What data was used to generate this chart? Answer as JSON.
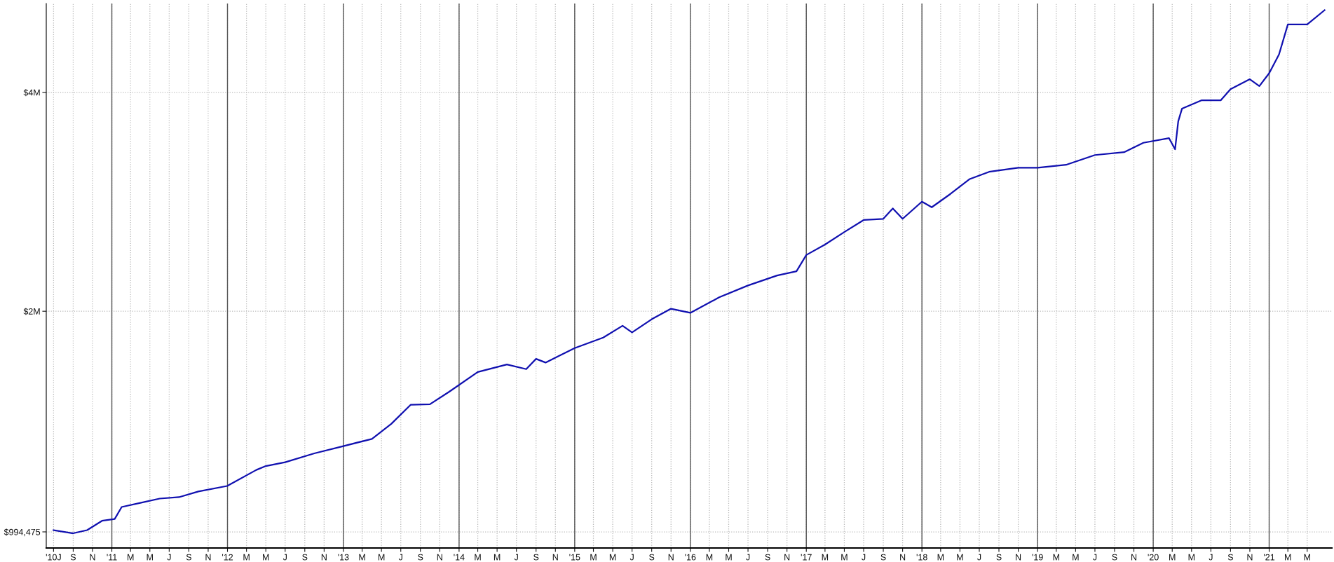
{
  "chart_data": {
    "type": "line",
    "log": "y",
    "grid": true,
    "marker": "none",
    "line_style": "solid",
    "xlim": [
      "2010-06-08",
      "2021-07-18"
    ],
    "ylim": [
      945000,
      5300000
    ],
    "yticks": [
      {
        "value": 994475,
        "label": "$994,475"
      },
      {
        "value": 2000000,
        "label": "$2M"
      },
      {
        "value": 4000000,
        "label": "$4M"
      }
    ],
    "xticks": [
      {
        "value": "2010-07-01",
        "label": "'10J"
      },
      {
        "value": "2010-09-01",
        "label": "S"
      },
      {
        "value": "2010-11-01",
        "label": "N"
      },
      {
        "value": "2011-01-01",
        "label": "'11"
      },
      {
        "value": "2011-03-01",
        "label": "M"
      },
      {
        "value": "2011-05-01",
        "label": "M"
      },
      {
        "value": "2011-07-01",
        "label": "J"
      },
      {
        "value": "2011-09-01",
        "label": "S"
      },
      {
        "value": "2011-11-01",
        "label": "N"
      },
      {
        "value": "2012-01-01",
        "label": "'12"
      },
      {
        "value": "2012-03-01",
        "label": "M"
      },
      {
        "value": "2012-05-01",
        "label": "M"
      },
      {
        "value": "2012-07-01",
        "label": "J"
      },
      {
        "value": "2012-09-01",
        "label": "S"
      },
      {
        "value": "2012-11-01",
        "label": "N"
      },
      {
        "value": "2013-01-01",
        "label": "'13"
      },
      {
        "value": "2013-03-01",
        "label": "M"
      },
      {
        "value": "2013-05-01",
        "label": "M"
      },
      {
        "value": "2013-07-01",
        "label": "J"
      },
      {
        "value": "2013-09-01",
        "label": "S"
      },
      {
        "value": "2013-11-01",
        "label": "N"
      },
      {
        "value": "2014-01-01",
        "label": "'14"
      },
      {
        "value": "2014-03-01",
        "label": "M"
      },
      {
        "value": "2014-05-01",
        "label": "M"
      },
      {
        "value": "2014-07-01",
        "label": "J"
      },
      {
        "value": "2014-09-01",
        "label": "S"
      },
      {
        "value": "2014-11-01",
        "label": "N"
      },
      {
        "value": "2015-01-01",
        "label": "'15"
      },
      {
        "value": "2015-03-01",
        "label": "M"
      },
      {
        "value": "2015-05-01",
        "label": "M"
      },
      {
        "value": "2015-07-01",
        "label": "J"
      },
      {
        "value": "2015-09-01",
        "label": "S"
      },
      {
        "value": "2015-11-01",
        "label": "N"
      },
      {
        "value": "2016-01-01",
        "label": "'16"
      },
      {
        "value": "2016-03-01",
        "label": "M"
      },
      {
        "value": "2016-05-01",
        "label": "M"
      },
      {
        "value": "2016-07-01",
        "label": "J"
      },
      {
        "value": "2016-09-01",
        "label": "S"
      },
      {
        "value": "2016-11-01",
        "label": "N"
      },
      {
        "value": "2017-01-01",
        "label": "'17"
      },
      {
        "value": "2017-03-01",
        "label": "M"
      },
      {
        "value": "2017-05-01",
        "label": "M"
      },
      {
        "value": "2017-07-01",
        "label": "J"
      },
      {
        "value": "2017-09-01",
        "label": "S"
      },
      {
        "value": "2017-11-01",
        "label": "N"
      },
      {
        "value": "2018-01-01",
        "label": "'18"
      },
      {
        "value": "2018-03-01",
        "label": "M"
      },
      {
        "value": "2018-05-01",
        "label": "M"
      },
      {
        "value": "2018-07-01",
        "label": "J"
      },
      {
        "value": "2018-09-01",
        "label": "S"
      },
      {
        "value": "2018-11-01",
        "label": "N"
      },
      {
        "value": "2019-01-01",
        "label": "'19"
      },
      {
        "value": "2019-03-01",
        "label": "M"
      },
      {
        "value": "2019-05-01",
        "label": "M"
      },
      {
        "value": "2019-07-01",
        "label": "J"
      },
      {
        "value": "2019-09-01",
        "label": "S"
      },
      {
        "value": "2019-11-01",
        "label": "N"
      },
      {
        "value": "2020-01-01",
        "label": "'20"
      },
      {
        "value": "2020-03-01",
        "label": "M"
      },
      {
        "value": "2020-05-01",
        "label": "M"
      },
      {
        "value": "2020-07-01",
        "label": "J"
      },
      {
        "value": "2020-09-01",
        "label": "S"
      },
      {
        "value": "2020-11-01",
        "label": "N"
      },
      {
        "value": "2021-01-01",
        "label": "'21"
      },
      {
        "value": "2021-03-01",
        "label": "M"
      },
      {
        "value": "2021-05-01",
        "label": "M"
      }
    ],
    "x": [
      "2010-07-01",
      "2010-09-01",
      "2010-10-15",
      "2010-12-01",
      "2011-01-10",
      "2011-02-01",
      "2011-04-01",
      "2011-06-01",
      "2011-08-01",
      "2011-10-01",
      "2011-12-31",
      "2012-04-01",
      "2012-05-01",
      "2012-07-01",
      "2012-10-01",
      "2013-01-01",
      "2013-04-01",
      "2013-06-01",
      "2013-08-01",
      "2013-10-01",
      "2013-12-01",
      "2014-03-01",
      "2014-06-01",
      "2014-08-01",
      "2014-09-01",
      "2014-10-01",
      "2015-01-01",
      "2015-04-01",
      "2015-06-01",
      "2015-07-01",
      "2015-09-01",
      "2015-11-01",
      "2016-01-01",
      "2016-04-01",
      "2016-07-01",
      "2016-10-01",
      "2016-12-01",
      "2017-01-01",
      "2017-03-01",
      "2017-05-01",
      "2017-07-01",
      "2017-09-01",
      "2017-10-01",
      "2017-11-01",
      "2018-01-01",
      "2018-02-01",
      "2018-04-01",
      "2018-06-01",
      "2018-08-01",
      "2018-11-01",
      "2019-01-01",
      "2019-04-01",
      "2019-07-01",
      "2019-10-01",
      "2019-12-01",
      "2020-02-20",
      "2020-03-10",
      "2020-03-20",
      "2020-04-01",
      "2020-06-01",
      "2020-08-01",
      "2020-09-01",
      "2020-11-01",
      "2020-12-01",
      "2021-01-01",
      "2021-02-01",
      "2021-03-01",
      "2021-05-01",
      "2021-06-25"
    ],
    "series": [
      {
        "color": "#1010b0",
        "values": [
          1000000,
          990000,
          1000000,
          1030000,
          1036000,
          1076000,
          1090000,
          1105000,
          1110000,
          1130000,
          1150000,
          1210000,
          1225000,
          1240000,
          1275000,
          1305000,
          1335000,
          1400000,
          1487000,
          1490000,
          1550000,
          1650000,
          1690000,
          1665000,
          1720000,
          1700000,
          1780000,
          1840000,
          1910000,
          1870000,
          1950000,
          2016000,
          1990000,
          2090000,
          2170000,
          2240000,
          2270000,
          2390000,
          2470000,
          2570000,
          2670000,
          2680000,
          2770000,
          2680000,
          2830000,
          2780000,
          2900000,
          3040000,
          3110000,
          3150000,
          3150000,
          3180000,
          3280000,
          3310000,
          3410000,
          3460000,
          3340000,
          3650000,
          3800000,
          3900000,
          3900000,
          4040000,
          4170000,
          4080000,
          4250000,
          4510000,
          4960000,
          4960000,
          5190000
        ]
      }
    ]
  }
}
